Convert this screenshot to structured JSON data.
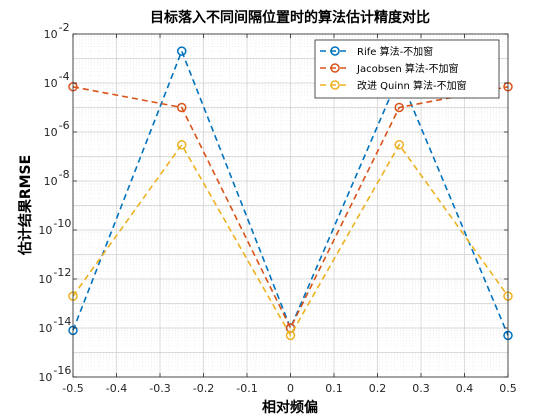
{
  "chart_data": {
    "type": "line",
    "title": "目标落入不同间隔位置时的算法估计精度对比",
    "xlabel": "相对频偏",
    "ylabel": "估计结果RMSE",
    "xlim": [
      -0.5,
      0.5
    ],
    "ylim_log10": [
      -16,
      -2
    ],
    "yscale": "log",
    "grid": true,
    "minor_grid": true,
    "legend_position": "top-right",
    "x": [
      -0.5,
      -0.25,
      0,
      0.25,
      0.5
    ],
    "x_tick_labels": [
      "-0.5",
      "-0.4",
      "-0.3",
      "-0.2",
      "-0.1",
      "0",
      "0.1",
      "0.2",
      "0.3",
      "0.4",
      "0.5"
    ],
    "y_tick_labels": [
      {
        "base": "10",
        "exp": "-2"
      },
      {
        "base": "10",
        "exp": "-4"
      },
      {
        "base": "10",
        "exp": "-6"
      },
      {
        "base": "10",
        "exp": "-8"
      },
      {
        "base": "10",
        "exp": "-10"
      },
      {
        "base": "10",
        "exp": "-12"
      },
      {
        "base": "10",
        "exp": "-14"
      },
      {
        "base": "10",
        "exp": "-16"
      }
    ],
    "series": [
      {
        "name": "Rife 算法-不加窗",
        "color": "#0072BD",
        "values": [
          8e-15,
          0.002,
          1e-14,
          0.0002,
          5e-15
        ]
      },
      {
        "name": "Jacobsen 算法-不加窗",
        "color": "#D95319",
        "values": [
          7e-05,
          1e-05,
          1e-14,
          1e-05,
          7e-05
        ]
      },
      {
        "name": "改进 Quinn 算法-不加窗",
        "color": "#EDB120",
        "values": [
          2e-13,
          3e-07,
          5e-15,
          3e-07,
          2e-13
        ]
      }
    ]
  }
}
